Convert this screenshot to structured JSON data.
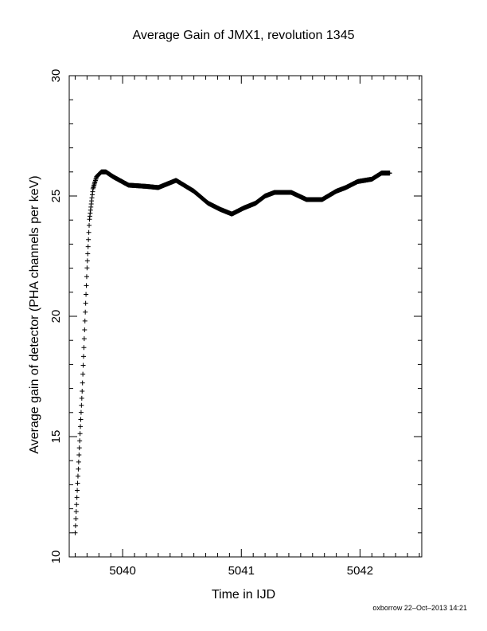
{
  "credit": "oxborrow 22–Oct–2013 14:21",
  "chart_data": {
    "type": "scatter",
    "marker": "+",
    "title": "Average Gain of JMX1, revolution 1345",
    "xlabel": "Time in IJD",
    "ylabel": "Average gain of detector (PHA channels per keV)",
    "xlim": [
      5039.55,
      5042.52
    ],
    "ylim": [
      10,
      30
    ],
    "xticks": [
      5040,
      5041,
      5042
    ],
    "yticks": [
      10,
      15,
      20,
      25,
      30
    ],
    "grid": false,
    "series": [
      {
        "curve": [
          [
            5039.6,
            11.0
          ],
          [
            5039.62,
            13.0
          ],
          [
            5039.64,
            15.0
          ],
          [
            5039.66,
            17.0
          ],
          [
            5039.68,
            19.5
          ],
          [
            5039.7,
            22.0
          ],
          [
            5039.72,
            24.0
          ],
          [
            5039.75,
            25.3
          ],
          [
            5039.78,
            25.8
          ],
          [
            5039.82,
            26.0
          ],
          [
            5039.86,
            26.0
          ],
          [
            5039.92,
            25.8
          ],
          [
            5040.05,
            25.45
          ],
          [
            5040.2,
            25.4
          ],
          [
            5040.3,
            25.35
          ],
          [
            5040.45,
            25.65
          ],
          [
            5040.6,
            25.2
          ],
          [
            5040.72,
            24.7
          ],
          [
            5040.82,
            24.45
          ],
          [
            5040.92,
            24.25
          ],
          [
            5041.02,
            24.5
          ],
          [
            5041.12,
            24.7
          ],
          [
            5041.2,
            25.0
          ],
          [
            5041.28,
            25.15
          ],
          [
            5041.42,
            25.15
          ],
          [
            5041.55,
            24.85
          ],
          [
            5041.68,
            24.85
          ],
          [
            5041.8,
            25.2
          ],
          [
            5041.88,
            25.35
          ],
          [
            5041.98,
            25.6
          ],
          [
            5042.1,
            25.7
          ],
          [
            5042.18,
            25.95
          ],
          [
            5042.25,
            25.95
          ]
        ]
      }
    ]
  }
}
